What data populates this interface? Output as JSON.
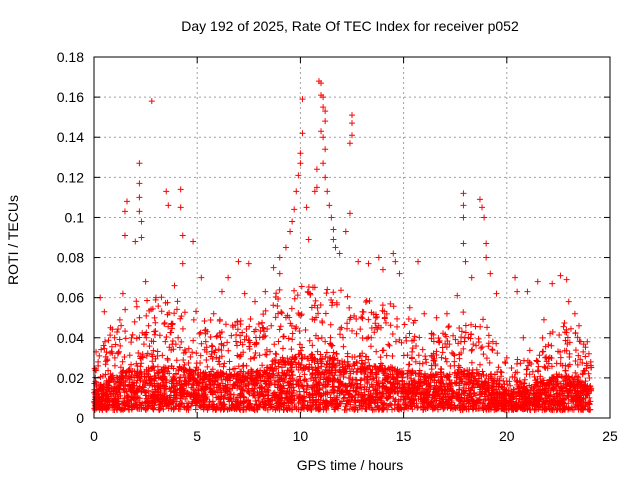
{
  "chart_data": {
    "type": "scatter",
    "title": "Day 192 of 2025, Rate Of TEC Index for receiver p052",
    "xlabel": "GPS time / hours",
    "ylabel": "ROTI / TECUs",
    "xlim": [
      0,
      25
    ],
    "ylim": [
      0,
      0.18
    ],
    "x_ticks": [
      0,
      5,
      10,
      15,
      20,
      25
    ],
    "x_tick_labels": [
      "0",
      "5",
      "10",
      "15",
      "20",
      "25"
    ],
    "y_ticks": [
      0,
      0.02,
      0.04,
      0.06,
      0.08,
      0.1,
      0.12,
      0.14,
      0.16,
      0.18
    ],
    "y_tick_labels": [
      "0",
      "0.02",
      "0.04",
      "0.06",
      "0.08",
      "0.1",
      "0.12",
      "0.14",
      "0.16",
      "0.18"
    ],
    "grid": true,
    "marker": "+",
    "color": "#ff0000",
    "series": [
      {
        "name": "",
        "points": [
          [
            0.3,
            0.06
          ],
          [
            0.5,
            0.053
          ],
          [
            0.8,
            0.045
          ],
          [
            1.5,
            0.091
          ],
          [
            1.5,
            0.103
          ],
          [
            1.6,
            0.108
          ],
          [
            2.0,
            0.088
          ],
          [
            2.2,
            0.127
          ],
          [
            2.2,
            0.117
          ],
          [
            2.2,
            0.11
          ],
          [
            2.2,
            0.103
          ],
          [
            2.3,
            0.098
          ],
          [
            2.3,
            0.09
          ],
          [
            2.8,
            0.158
          ],
          [
            3.5,
            0.113
          ],
          [
            3.6,
            0.106
          ],
          [
            4.2,
            0.114
          ],
          [
            4.2,
            0.105
          ],
          [
            4.3,
            0.091
          ],
          [
            4.8,
            0.088
          ],
          [
            4.3,
            0.077
          ],
          [
            6.5,
            0.07
          ],
          [
            7.0,
            0.078
          ],
          [
            7.5,
            0.077
          ],
          [
            8.7,
            0.075
          ],
          [
            9.0,
            0.08
          ],
          [
            9.3,
            0.085
          ],
          [
            9.5,
            0.093
          ],
          [
            9.6,
            0.098
          ],
          [
            9.7,
            0.104
          ],
          [
            9.8,
            0.113
          ],
          [
            9.9,
            0.121
          ],
          [
            10.0,
            0.127
          ],
          [
            10.0,
            0.132
          ],
          [
            10.1,
            0.142
          ],
          [
            10.1,
            0.159
          ],
          [
            10.3,
            0.105
          ],
          [
            10.7,
            0.113
          ],
          [
            10.8,
            0.115
          ],
          [
            10.8,
            0.124
          ],
          [
            10.9,
            0.168
          ],
          [
            11.0,
            0.167
          ],
          [
            11.0,
            0.161
          ],
          [
            11.1,
            0.16
          ],
          [
            11.1,
            0.155
          ],
          [
            11.2,
            0.153
          ],
          [
            11.2,
            0.148
          ],
          [
            11.0,
            0.143
          ],
          [
            11.1,
            0.14
          ],
          [
            11.2,
            0.134
          ],
          [
            11.1,
            0.127
          ],
          [
            11.2,
            0.12
          ],
          [
            11.3,
            0.113
          ],
          [
            11.4,
            0.106
          ],
          [
            11.5,
            0.1
          ],
          [
            11.6,
            0.094
          ],
          [
            11.6,
            0.089
          ],
          [
            11.7,
            0.085
          ],
          [
            12.5,
            0.151
          ],
          [
            12.5,
            0.147
          ],
          [
            12.5,
            0.141
          ],
          [
            12.4,
            0.137
          ],
          [
            12.4,
            0.102
          ],
          [
            12.2,
            0.093
          ],
          [
            13.8,
            0.08
          ],
          [
            14.5,
            0.082
          ],
          [
            14.6,
            0.078
          ],
          [
            15.7,
            0.078
          ],
          [
            17.9,
            0.112
          ],
          [
            17.9,
            0.106
          ],
          [
            17.9,
            0.1
          ],
          [
            17.9,
            0.087
          ],
          [
            18.0,
            0.078
          ],
          [
            18.7,
            0.109
          ],
          [
            18.8,
            0.105
          ],
          [
            18.9,
            0.1
          ],
          [
            19.0,
            0.087
          ],
          [
            19.0,
            0.08
          ],
          [
            20.4,
            0.07
          ],
          [
            20.5,
            0.063
          ],
          [
            21.0,
            0.063
          ],
          [
            21.5,
            0.068
          ],
          [
            22.2,
            0.067
          ],
          [
            22.6,
            0.071
          ],
          [
            23.0,
            0.058
          ],
          [
            23.5,
            0.046
          ],
          [
            23.9,
            0.038
          ],
          [
            0.1,
            0.033
          ],
          [
            0.2,
            0.028
          ],
          [
            1.0,
            0.04
          ],
          [
            1.4,
            0.062
          ],
          [
            2.5,
            0.068
          ],
          [
            3.0,
            0.06
          ],
          [
            3.9,
            0.066
          ],
          [
            5.2,
            0.07
          ],
          [
            5.8,
            0.052
          ],
          [
            6.2,
            0.063
          ],
          [
            7.3,
            0.062
          ],
          [
            7.8,
            0.058
          ],
          [
            8.3,
            0.063
          ],
          [
            9.0,
            0.072
          ],
          [
            10.4,
            0.089
          ],
          [
            11.9,
            0.082
          ],
          [
            12.8,
            0.078
          ],
          [
            13.3,
            0.077
          ],
          [
            14.0,
            0.074
          ],
          [
            14.8,
            0.072
          ],
          [
            15.3,
            0.055
          ],
          [
            16.0,
            0.052
          ],
          [
            16.6,
            0.05
          ],
          [
            17.1,
            0.052
          ],
          [
            17.6,
            0.061
          ],
          [
            18.3,
            0.07
          ],
          [
            19.2,
            0.072
          ],
          [
            19.5,
            0.062
          ],
          [
            20.0,
            0.03
          ],
          [
            20.8,
            0.04
          ],
          [
            21.8,
            0.049
          ],
          [
            22.9,
            0.069
          ],
          [
            23.3,
            0.052
          ],
          [
            23.7,
            0.033
          ]
        ],
        "band": [
          [
            0,
            0.025,
            0.012
          ],
          [
            1,
            0.045,
            0.018
          ],
          [
            2,
            0.055,
            0.022
          ],
          [
            3,
            0.058,
            0.022
          ],
          [
            4,
            0.055,
            0.022
          ],
          [
            5,
            0.05,
            0.02
          ],
          [
            6,
            0.045,
            0.018
          ],
          [
            7,
            0.045,
            0.018
          ],
          [
            8,
            0.05,
            0.02
          ],
          [
            9,
            0.06,
            0.025
          ],
          [
            10,
            0.065,
            0.028
          ],
          [
            11,
            0.065,
            0.028
          ],
          [
            12,
            0.06,
            0.025
          ],
          [
            13,
            0.055,
            0.022
          ],
          [
            14,
            0.055,
            0.022
          ],
          [
            15,
            0.05,
            0.02
          ],
          [
            16,
            0.042,
            0.018
          ],
          [
            17,
            0.04,
            0.018
          ],
          [
            18,
            0.05,
            0.02
          ],
          [
            19,
            0.045,
            0.018
          ],
          [
            20,
            0.022,
            0.01
          ],
          [
            21,
            0.03,
            0.012
          ],
          [
            22,
            0.04,
            0.016
          ],
          [
            23,
            0.045,
            0.018
          ],
          [
            24,
            0.03,
            0.012
          ]
        ]
      }
    ]
  }
}
